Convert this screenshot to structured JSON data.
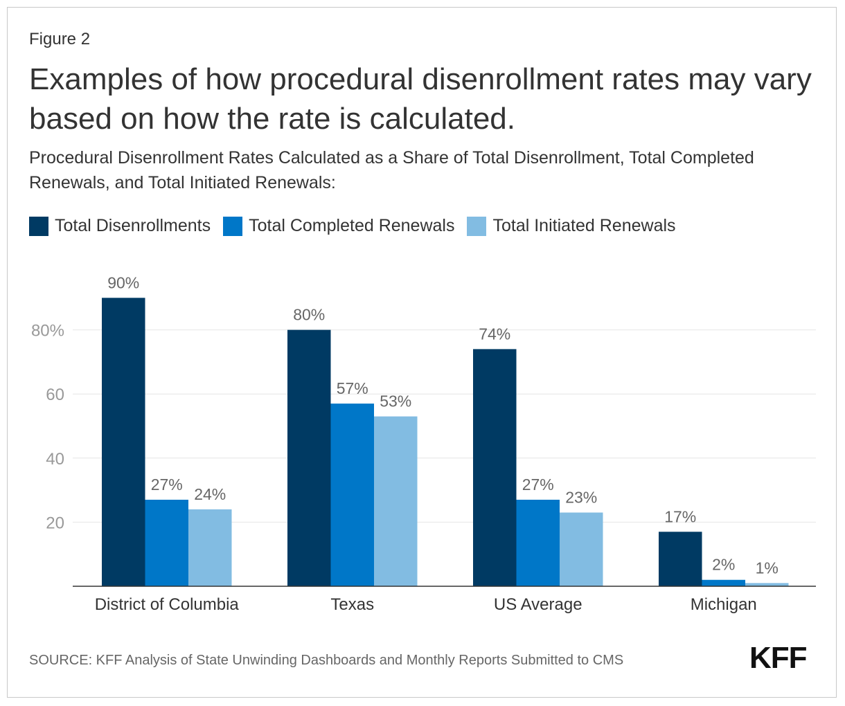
{
  "figure_label": "Figure 2",
  "title": "Examples of how procedural disenrollment rates may vary based on how the rate is calculated.",
  "subtitle": "Procedural Disenrollment Rates Calculated as a Share of Total Disenrollment, Total Completed Renewals, and Total Initiated Renewals:",
  "source": "SOURCE: KFF Analysis of State Unwinding Dashboards and Monthly Reports Submitted to CMS",
  "logo_text": "KFF",
  "colors": {
    "series_1": "#003a63",
    "series_2": "#0077c8",
    "series_3": "#82bce2",
    "grid": "#e6e6e6",
    "axis": "#333333",
    "tick_label": "#999999",
    "data_label": "#666666",
    "category_label": "#333333"
  },
  "chart_data": {
    "type": "bar",
    "title": "Examples of how procedural disenrollment rates may vary based on how the rate is calculated.",
    "categories": [
      "District of Columbia",
      "Texas",
      "US Average",
      "Michigan"
    ],
    "series": [
      {
        "name": "Total Disenrollments",
        "values": [
          90,
          80,
          74,
          17
        ]
      },
      {
        "name": "Total Completed Renewals",
        "values": [
          27,
          57,
          27,
          2
        ]
      },
      {
        "name": "Total Initiated Renewals",
        "values": [
          24,
          53,
          23,
          1
        ]
      }
    ],
    "data_labels": [
      [
        "90%",
        "80%",
        "74%",
        "17%"
      ],
      [
        "27%",
        "57%",
        "27%",
        "2%"
      ],
      [
        "24%",
        "53%",
        "23%",
        "1%"
      ]
    ],
    "yticks": [
      20,
      40,
      60,
      80
    ],
    "ytick_labels": [
      "20",
      "40",
      "60",
      "80%"
    ],
    "ylim": [
      0,
      100
    ],
    "xlabel": "",
    "ylabel": "",
    "grid": true,
    "legend_position": "top-left"
  }
}
